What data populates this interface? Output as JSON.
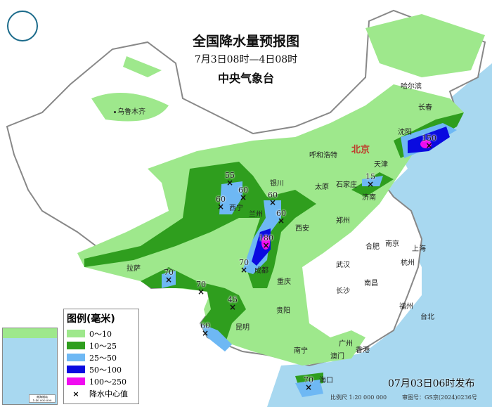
{
  "header": {
    "title": "全国降水量预报图",
    "period": "7月3日08时—4日08时",
    "agency": "中央气象台"
  },
  "legend": {
    "title": "图例(毫米)",
    "items": [
      {
        "label": "0～10",
        "color": "#9ee88c"
      },
      {
        "label": "10～25",
        "color": "#2f9e1e"
      },
      {
        "label": "25～50",
        "color": "#6eb8f4"
      },
      {
        "label": "50～100",
        "color": "#0a0ae0"
      },
      {
        "label": "100～250",
        "color": "#f00cf0"
      }
    ],
    "center_symbol": "×",
    "center_label": "降水中心值"
  },
  "footer": {
    "published": "07月03日06时发布",
    "scale": "比例尺 1:20 000 000",
    "review_no": "审图号：GS京(2024)0236号"
  },
  "inset": {
    "caption_line1": "南海诸岛",
    "caption_line2": "1:40 000 000"
  },
  "cities": {
    "wulumuqi": "乌鲁木齐",
    "haerbin": "哈尔滨",
    "changchun": "长春",
    "shenyang": "沈阳",
    "beijing": "北京",
    "tianjin": "天津",
    "huhehaote": "呼和浩特",
    "shijiazhuang": "石家庄",
    "taiyuan": "太原",
    "jinan": "济南",
    "yinchuan": "银川",
    "xining": "西宁",
    "lanzhou": "兰州",
    "xian": "西安",
    "zhengzhou": "郑州",
    "hefei": "合肥",
    "nanjing": "南京",
    "shanghai": "上海",
    "hangzhou": "杭州",
    "wuhan": "武汉",
    "chengdu": "成都",
    "chongqing": "重庆",
    "lasa": "拉萨",
    "changsha": "长沙",
    "nanchang": "南昌",
    "fuzhou": "福州",
    "taibei": "台北",
    "guiyang": "贵阳",
    "kunming": "昆明",
    "nanning": "南宁",
    "guangzhou": "广州",
    "aomen": "澳门",
    "xianggang": "香港",
    "haikou": "海口"
  },
  "rain_centers": [
    "55",
    "60",
    "60",
    "60",
    "60",
    "180",
    "70",
    "70",
    "70",
    "45",
    "60",
    "15",
    "150",
    "70"
  ],
  "colors": {
    "sea": "#a8d8f0",
    "land": "#ffffff",
    "border": "#888888"
  }
}
